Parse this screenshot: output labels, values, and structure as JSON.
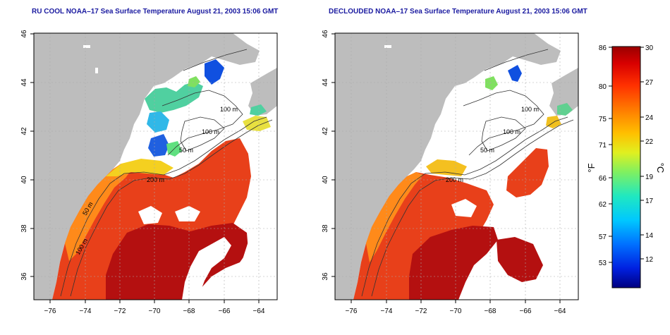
{
  "panels": [
    {
      "title": "RU COOL NOAA–17 Sea Surface Temperature August 21, 2003 15:06 GMT",
      "contour_labels": [
        "100 m",
        "100 m",
        "50 m",
        "200 m",
        "50 m",
        "100 m"
      ]
    },
    {
      "title": "DECLOUDED NOAA–17 Sea Surface Temperature August 21, 2003 15:06 GMT",
      "contour_labels": [
        "100 m",
        "100 m",
        "50 m",
        "200 m"
      ]
    }
  ],
  "axes": {
    "x_ticks": [
      "−76",
      "−74",
      "−72",
      "−70",
      "−68",
      "−66",
      "−64"
    ],
    "y_ticks": [
      "36",
      "38",
      "40",
      "42",
      "44",
      "46"
    ]
  },
  "colorbar": {
    "fahrenheit_label": "°F",
    "celsius_label": "°C",
    "fahrenheit_ticks": [
      "86",
      "80",
      "75",
      "71",
      "66",
      "62",
      "57",
      "53"
    ],
    "celsius_ticks": [
      "30",
      "27",
      "24",
      "22",
      "19",
      "17",
      "14",
      "12"
    ],
    "colors": [
      "#0000a0",
      "#0030ff",
      "#00a8ff",
      "#00e0e0",
      "#30e080",
      "#a0f040",
      "#f0f020",
      "#ffc000",
      "#ff8000",
      "#ff3000",
      "#e00000",
      "#a00000"
    ]
  },
  "colors": {
    "land": "#bdbdbd",
    "sea_warm": "#e8401a",
    "sea_hot": "#b41010",
    "title": "#1a1aa0"
  }
}
